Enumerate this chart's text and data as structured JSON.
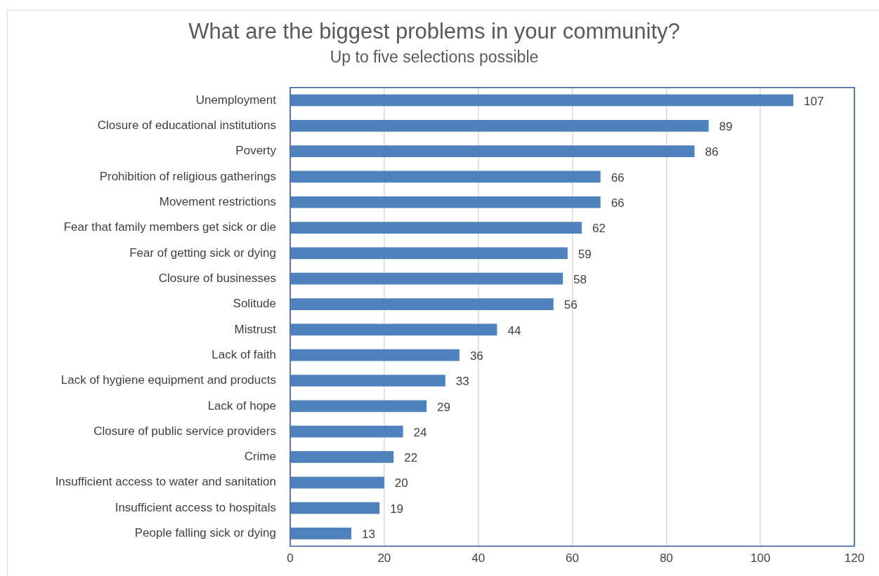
{
  "chart_data": {
    "type": "bar",
    "orientation": "horizontal",
    "title": "What are the biggest problems in your community?",
    "subtitle": "Up to five selections possible",
    "categories": [
      "Unemployment",
      "Closure of educational institutions",
      "Poverty",
      "Prohibition of religious gatherings",
      "Movement restrictions",
      "Fear that family members get sick or die",
      "Fear of getting sick or dying",
      "Closure of businesses",
      "Solitude",
      "Mistrust",
      "Lack of faith",
      "Lack of hygiene equipment and products",
      "Lack of hope",
      "Closure of public service providers",
      "Crime",
      "Insufficient access to water and sanitation",
      "Insufficient access to hospitals",
      "People falling sick or dying"
    ],
    "values": [
      107,
      89,
      86,
      66,
      66,
      62,
      59,
      58,
      56,
      44,
      36,
      33,
      29,
      24,
      22,
      20,
      19,
      13
    ],
    "color": "#4f81bd",
    "xlim": [
      0,
      120
    ],
    "xticks": [
      0,
      20,
      40,
      60,
      80,
      100,
      120
    ],
    "grid": "x",
    "legend": false,
    "data_labels": true
  }
}
